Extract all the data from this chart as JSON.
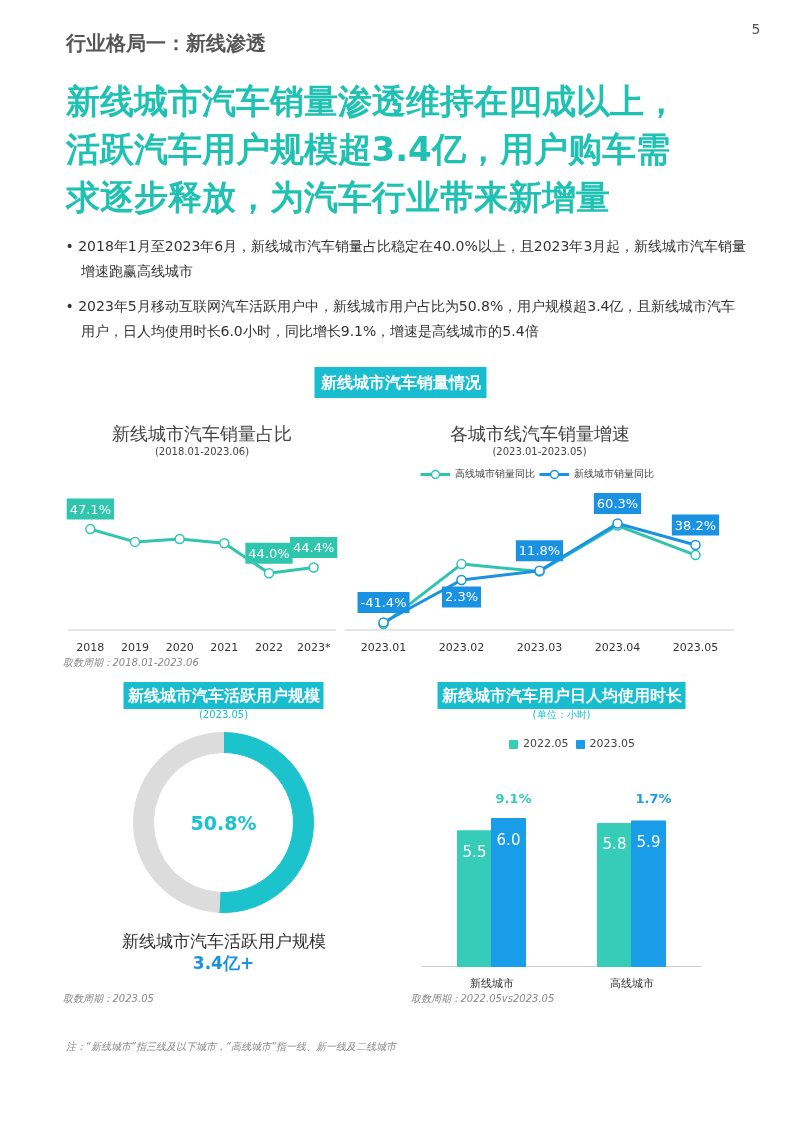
{
  "chart_data": [
    {
      "type": "other",
      "title": "行业格局一：新线渗透",
      "subtitle": "新线城市汽车销量渗透维持在四成以上，活跃汽车用户规模超3.4亿，用户购车需求逐步释放，为汽车行业带来新增量",
      "annotations": [
        "• 2018年1月至2023年6月，新线城市汽车销量占比稳定在40.0%以上，且2023年3月起，新线城市汽车销量增速跑赢高线城市",
        "• 2023年5月移动互联网汽车活跃用户中，新线城市用户占比为50.8%，用户规模超3.4亿，且新线城市汽车用户，日人均使用时长6.0小时，同比增长9.1%，增速是高线城市的5.4倍",
        "5",
        "新线城市汽车销量情况",
        "注：“新线城市”指三线及以下城市，“高线城市”指一线、新一线及二线城市"
      ]
    },
    {
      "type": "line",
      "title": "新线城市汽车销量占比",
      "subtitle": "(2018.01-2023.06)",
      "categories": [
        "2018",
        "2019",
        "2020",
        "2021",
        "2022",
        "2023*"
      ],
      "tick_labels": "x",
      "marker": "circle",
      "series": [
        {
          "color": "#2fc6ad",
          "values": [
            47.1,
            46.2,
            46.4,
            46.1,
            44.0,
            44.4
          ],
          "value_labels": [
            "47.1%",
            null,
            null,
            null,
            "44.0%",
            "44.4%"
          ]
        }
      ],
      "annotations": [
        "取数周期：2018.01-2023.06"
      ]
    },
    {
      "type": "line",
      "title": "各城市线汽车销量增速",
      "subtitle": "(2023.01-2023.05)",
      "categories": [
        "2023.01",
        "2023.02",
        "2023.03",
        "2023.04",
        "2023.05"
      ],
      "tick_labels": "x",
      "marker": "circle",
      "legend": "top",
      "series": [
        {
          "name": "高线城市销量同比",
          "color": "#2ec4b0",
          "values": [
            -43,
            18.6,
            11,
            58.2,
            27.9
          ]
        },
        {
          "name": "新线城市销量同比",
          "color": "#1a92e2",
          "values": [
            -41.4,
            2.3,
            11.8,
            60.3,
            38.2
          ],
          "value_labels": [
            "-41.4%",
            "2.3%",
            "11.8%",
            "60.3%",
            "38.2%"
          ]
        }
      ]
    },
    {
      "type": "donut",
      "title": "新线城市汽车活跃用户规模",
      "subtitle": "(2023.05)",
      "categories": [
        null,
        null
      ],
      "values": [
        50.8,
        49.2
      ],
      "colors": [
        "#1cc3cc",
        "#dcdcdc"
      ],
      "value_labels": [
        "50.8%",
        null
      ],
      "annotations": [
        "新线城市汽车活跃用户规模",
        "3.4亿+",
        "取数周期：2023.05"
      ]
    },
    {
      "type": "bar",
      "title": "新线城市汽车用户日人均使用时长",
      "subtitle": "(单位：小时)",
      "categories": [
        "新线城市",
        "高线城市"
      ],
      "tick_labels": "x",
      "legend": "top",
      "series": [
        {
          "name": "2022.05",
          "color": "#36ccb8",
          "values": [
            5.5,
            5.8
          ],
          "value_labels": [
            "5.5",
            "5.8"
          ]
        },
        {
          "name": "2023.05",
          "color": "#1a9de8",
          "values": [
            6.0,
            5.9
          ],
          "value_labels": [
            "6.0",
            "5.9"
          ]
        }
      ],
      "annotations": [
        "9.1%",
        "1.7%",
        "取数周期：2022.05vs2023.05"
      ]
    }
  ]
}
